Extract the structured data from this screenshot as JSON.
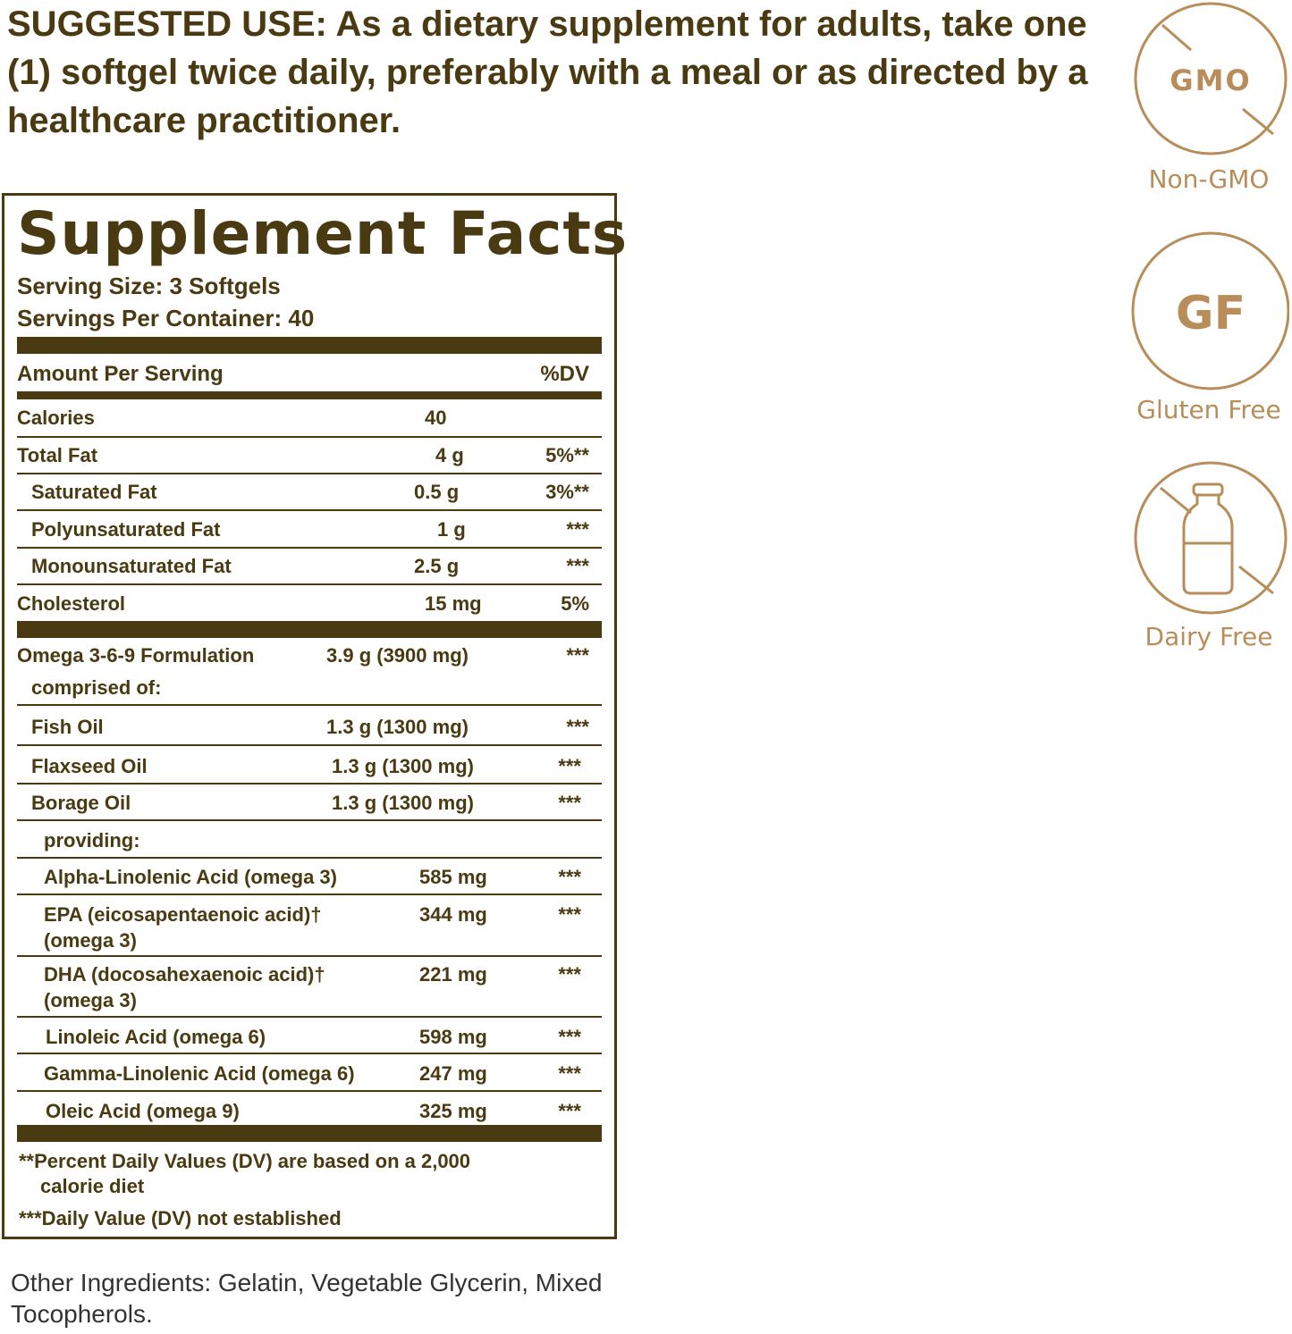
{
  "suggested_use": "SUGGESTED USE: As a dietary supplement for adults, take one (1) softgel twice daily, preferably with a meal or as directed by a healthcare practitioner.",
  "facts": {
    "title": "Supplement Facts",
    "serving_size": "Serving Size: 3 Softgels",
    "servings_per_container": "Servings Per Container: 40",
    "amount_header": "Amount Per Serving",
    "dv_header": "%DV",
    "rows": [
      {
        "name": "Calories",
        "amount": "40",
        "dv": ""
      },
      {
        "name": "Total Fat",
        "amount": "4 g",
        "dv": "5%**"
      },
      {
        "name": "Saturated Fat",
        "amount": "0.5 g",
        "dv": "3%**"
      },
      {
        "name": "Polyunsaturated Fat",
        "amount": "1 g",
        "dv": "***"
      },
      {
        "name": "Monounsaturated Fat",
        "amount": "2.5 g",
        "dv": "***"
      },
      {
        "name": "Cholesterol",
        "amount": "15 mg",
        "dv": "5%"
      },
      {
        "name": "Omega 3-6-9 Formulation",
        "sub": "comprised of:",
        "amount": "3.9 g (3900 mg)",
        "dv": "***"
      },
      {
        "name": "Fish Oil",
        "amount": "1.3 g (1300 mg)",
        "dv": "***"
      },
      {
        "name": "Flaxseed Oil",
        "amount": "1.3 g (1300 mg)",
        "dv": "***"
      },
      {
        "name": "Borage Oil",
        "amount": "1.3 g (1300 mg)",
        "dv": "***"
      },
      {
        "name": "providing:",
        "amount": "",
        "dv": ""
      },
      {
        "name": "Alpha-Linolenic Acid (omega 3)",
        "amount": "585 mg",
        "dv": "***"
      },
      {
        "name": "EPA (eicosapentaenoic acid)†",
        "sub": "(omega 3)",
        "amount": "344 mg",
        "dv": "***"
      },
      {
        "name": "DHA (docosahexaenoic acid)†",
        "sub": "(omega 3)",
        "amount": "221 mg",
        "dv": "***"
      },
      {
        "name": "Linoleic Acid (omega 6)",
        "amount": "598 mg",
        "dv": "***"
      },
      {
        "name": "Gamma-Linolenic Acid (omega 6)",
        "amount": "247 mg",
        "dv": "***"
      },
      {
        "name": "Oleic Acid (omega 9)",
        "amount": "325 mg",
        "dv": "***"
      }
    ],
    "footnote_1a": "**Percent Daily Values (DV) are based on a 2,000",
    "footnote_1b": "calorie diet",
    "footnote_2": "***Daily Value (DV) not established"
  },
  "other_ingredients": "Other Ingredients: Gelatin, Vegetable Glycerin, Mixed Tocopherols.",
  "badges": [
    {
      "icon": "non-gmo-icon",
      "text": "GMO",
      "label": "Non-GMO"
    },
    {
      "icon": "gluten-free-icon",
      "text": "GF",
      "label": "Gluten Free"
    },
    {
      "icon": "dairy-free-icon",
      "label": "Dairy Free"
    }
  ],
  "colors": {
    "label_text": "#4a3a12",
    "badge_gold": "#b98d5a"
  }
}
